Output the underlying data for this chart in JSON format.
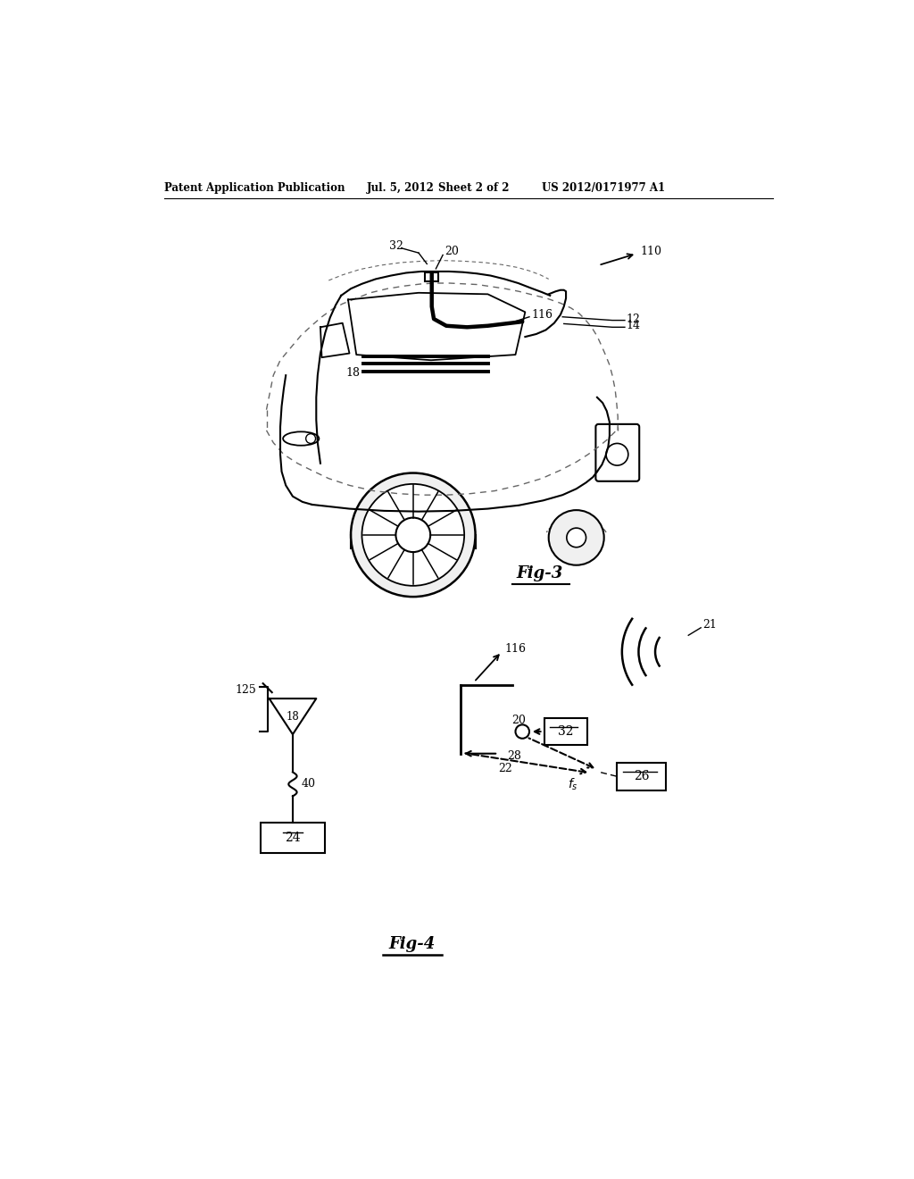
{
  "header_left": "Patent Application Publication",
  "header_center": "Jul. 5, 2012   Sheet 2 of 2",
  "header_right": "US 2012/0171977 A1",
  "fig3_label": "Fig-3",
  "fig4_label": "Fig-4",
  "bg_color": "#ffffff",
  "line_color": "#000000",
  "dash_color": "#666666"
}
